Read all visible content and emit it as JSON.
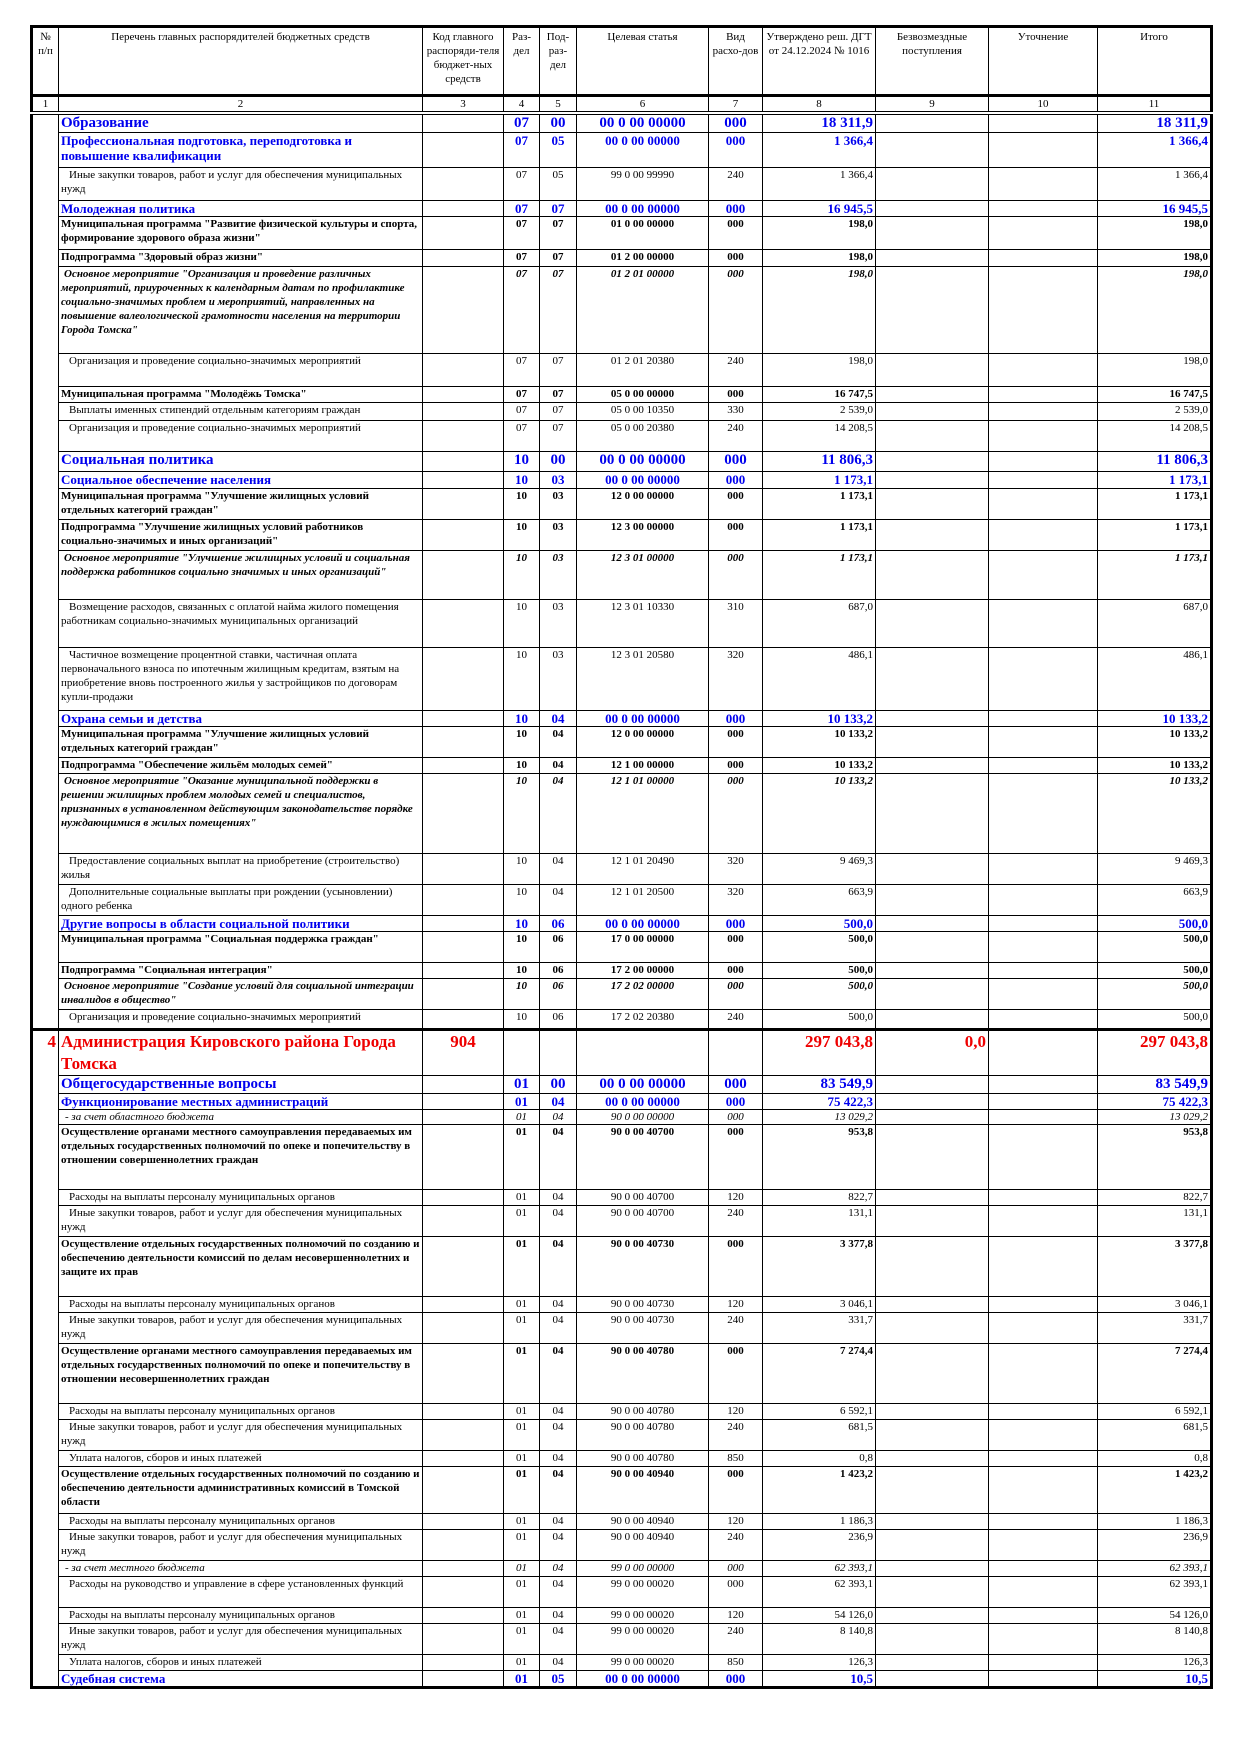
{
  "header": {
    "columns": [
      "№ п/п",
      "Перечень главных распорядителей бюджетных средств",
      "Код главного распоряди-теля бюджет-ных средств",
      "Раз-дел",
      "Под-раз-дел",
      "Целевая статья",
      "Вид расхо-дов",
      "Утверждено реш. ДГТ от 24.12.2024 № 1016",
      "Безвозмездные поступления",
      "Уточнение",
      "Итого"
    ],
    "numbers": [
      "1",
      "2",
      "3",
      "4",
      "5",
      "6",
      "7",
      "8",
      "9",
      "10",
      "11"
    ]
  },
  "rows": [
    {
      "num": "",
      "name": "Образование",
      "code": "",
      "rz": "07",
      "prz": "00",
      "cs": "00 0 00 00000",
      "vr": "000",
      "approved": "18 311,9",
      "gratis": "",
      "clarif": "",
      "total": "18 311,9"
    },
    {
      "num": "",
      "name": "Профессиональная подготовка, переподготовка и повышение квалификации",
      "code": "",
      "rz": "07",
      "prz": "05",
      "cs": "00 0 00 00000",
      "vr": "000",
      "approved": "1 366,4",
      "gratis": "",
      "clarif": "",
      "total": "1 366,4"
    },
    {
      "num": "",
      "name": "Иные закупки товаров, работ и услуг для обеспечения муниципальных нужд",
      "code": "",
      "rz": "07",
      "prz": "05",
      "cs": "99 0 00 99990",
      "vr": "240",
      "approved": "1 366,4",
      "gratis": "",
      "clarif": "",
      "total": "1 366,4"
    },
    {
      "num": "",
      "name": "Молодежная политика",
      "code": "",
      "rz": "07",
      "prz": "07",
      "cs": "00 0 00 00000",
      "vr": "000",
      "approved": "16 945,5",
      "gratis": "",
      "clarif": "",
      "total": "16 945,5"
    },
    {
      "num": "",
      "name": "Муниципальная программа \"Развитие физической культуры и спорта, формирование здорового образа жизни\"",
      "code": "",
      "rz": "07",
      "prz": "07",
      "cs": "01 0 00 00000",
      "vr": "000",
      "approved": "198,0",
      "gratis": "",
      "clarif": "",
      "total": "198,0"
    },
    {
      "num": "",
      "name": "Подпрограмма \"Здоровый образ жизни\"",
      "code": "",
      "rz": "07",
      "prz": "07",
      "cs": "01 2 00 00000",
      "vr": "000",
      "approved": "198,0",
      "gratis": "",
      "clarif": "",
      "total": "198,0"
    },
    {
      "num": "",
      "name": "Основное мероприятие \"Организация и проведение различных мероприятий, приуроченных к календарным датам по профилактике социально-значимых проблем и мероприятий, направленных на повышение валеологической грамотности населения на территории Города Томска\"",
      "code": "",
      "rz": "07",
      "prz": "07",
      "cs": "01 2 01 00000",
      "vr": "000",
      "approved": "198,0",
      "gratis": "",
      "clarif": "",
      "total": "198,0"
    },
    {
      "num": "",
      "name": "Организация и проведение социально-значимых мероприятий",
      "code": "",
      "rz": "07",
      "prz": "07",
      "cs": "01 2 01 20380",
      "vr": "240",
      "approved": "198,0",
      "gratis": "",
      "clarif": "",
      "total": "198,0"
    },
    {
      "num": "",
      "name": "Муниципальная программа \"Молодёжь Томска\"",
      "code": "",
      "rz": "07",
      "prz": "07",
      "cs": "05 0 00 00000",
      "vr": "000",
      "approved": "16 747,5",
      "gratis": "",
      "clarif": "",
      "total": "16 747,5"
    },
    {
      "num": "",
      "name": "Выплаты именных стипендий отдельным категориям граждан",
      "code": "",
      "rz": "07",
      "prz": "07",
      "cs": "05 0 00 10350",
      "vr": "330",
      "approved": "2 539,0",
      "gratis": "",
      "clarif": "",
      "total": "2 539,0"
    },
    {
      "num": "",
      "name": "Организация и проведение социально-значимых мероприятий",
      "code": "",
      "rz": "07",
      "prz": "07",
      "cs": "05 0 00 20380",
      "vr": "240",
      "approved": "14 208,5",
      "gratis": "",
      "clarif": "",
      "total": "14 208,5"
    },
    {
      "num": "",
      "name": "Социальная политика",
      "code": "",
      "rz": "10",
      "prz": "00",
      "cs": "00 0 00 00000",
      "vr": "000",
      "approved": "11 806,3",
      "gratis": "",
      "clarif": "",
      "total": "11 806,3"
    },
    {
      "num": "",
      "name": "Социальное обеспечение населения",
      "code": "",
      "rz": "10",
      "prz": "03",
      "cs": "00 0 00 00000",
      "vr": "000",
      "approved": "1 173,1",
      "gratis": "",
      "clarif": "",
      "total": "1 173,1"
    },
    {
      "num": "",
      "name": "Муниципальная программа \"Улучшение жилищных условий отдельных категорий граждан\"",
      "code": "",
      "rz": "10",
      "prz": "03",
      "cs": "12 0 00 00000",
      "vr": "000",
      "approved": "1 173,1",
      "gratis": "",
      "clarif": "",
      "total": "1 173,1"
    },
    {
      "num": "",
      "name": "Подпрограмма \"Улучшение жилищных условий работников социально-значимых и иных организаций\"",
      "code": "",
      "rz": "10",
      "prz": "03",
      "cs": "12 3 00 00000",
      "vr": "000",
      "approved": "1 173,1",
      "gratis": "",
      "clarif": "",
      "total": "1 173,1"
    },
    {
      "num": "",
      "name": "Основное мероприятие \"Улучшение жилищных условий и социальная поддержка работников социально значимых и иных организаций\"",
      "code": "",
      "rz": "10",
      "prz": "03",
      "cs": "12 3 01 00000",
      "vr": "000",
      "approved": "1 173,1",
      "gratis": "",
      "clarif": "",
      "total": "1 173,1"
    },
    {
      "num": "",
      "name": "Возмещение расходов, связанных с оплатой найма жилого помещения работникам социально-значимых муниципальных организаций",
      "code": "",
      "rz": "10",
      "prz": "03",
      "cs": "12 3 01 10330",
      "vr": "310",
      "approved": "687,0",
      "gratis": "",
      "clarif": "",
      "total": "687,0"
    },
    {
      "num": "",
      "name": "Частичное возмещение процентной ставки, частичная оплата первоначального взноса по ипотечным жилищным кредитам, взятым на приобретение вновь построенного жилья у застройщиков по договорам купли-продажи",
      "code": "",
      "rz": "10",
      "prz": "03",
      "cs": "12 3 01 20580",
      "vr": "320",
      "approved": "486,1",
      "gratis": "",
      "clarif": "",
      "total": "486,1"
    },
    {
      "num": "",
      "name": "Охрана семьи и детства",
      "code": "",
      "rz": "10",
      "prz": "04",
      "cs": "00 0 00 00000",
      "vr": "000",
      "approved": "10 133,2",
      "gratis": "",
      "clarif": "",
      "total": "10 133,2"
    },
    {
      "num": "",
      "name": "Муниципальная программа \"Улучшение жилищных условий отдельных категорий граждан\"",
      "code": "",
      "rz": "10",
      "prz": "04",
      "cs": "12 0 00 00000",
      "vr": "000",
      "approved": "10 133,2",
      "gratis": "",
      "clarif": "",
      "total": "10 133,2"
    },
    {
      "num": "",
      "name": "Подпрограмма \"Обеспечение жильём молодых семей\"",
      "code": "",
      "rz": "10",
      "prz": "04",
      "cs": "12 1 00 00000",
      "vr": "000",
      "approved": "10 133,2",
      "gratis": "",
      "clarif": "",
      "total": "10 133,2"
    },
    {
      "num": "",
      "name": "Основное мероприятие \"Оказание муниципальной поддержки в решении жилищных проблем молодых семей и специалистов, признанных в установленном действующим законодательстве порядке нуждающимися в жилых помещениях\"",
      "code": "",
      "rz": "10",
      "prz": "04",
      "cs": "12 1 01 00000",
      "vr": "000",
      "approved": "10 133,2",
      "gratis": "",
      "clarif": "",
      "total": "10 133,2"
    },
    {
      "num": "",
      "name": "Предоставление социальных выплат на приобретение (строительство) жилья",
      "code": "",
      "rz": "10",
      "prz": "04",
      "cs": "12 1 01 20490",
      "vr": "320",
      "approved": "9 469,3",
      "gratis": "",
      "clarif": "",
      "total": "9 469,3"
    },
    {
      "num": "",
      "name": "Дополнительные социальные выплаты при рождении (усыновлении) одного ребенка",
      "code": "",
      "rz": "10",
      "prz": "04",
      "cs": "12 1 01 20500",
      "vr": "320",
      "approved": "663,9",
      "gratis": "",
      "clarif": "",
      "total": "663,9"
    },
    {
      "num": "",
      "name": "Другие вопросы в области социальной политики",
      "code": "",
      "rz": "10",
      "prz": "06",
      "cs": "00 0 00 00000",
      "vr": "000",
      "approved": "500,0",
      "gratis": "",
      "clarif": "",
      "total": "500,0"
    },
    {
      "num": "",
      "name": "Муниципальная программа \"Социальная поддержка граждан\"",
      "code": "",
      "rz": "10",
      "prz": "06",
      "cs": "17 0 00 00000",
      "vr": "000",
      "approved": "500,0",
      "gratis": "",
      "clarif": "",
      "total": "500,0"
    },
    {
      "num": "",
      "name": "Подпрограмма \"Социальная интеграция\"",
      "code": "",
      "rz": "10",
      "prz": "06",
      "cs": "17 2 00 00000",
      "vr": "000",
      "approved": "500,0",
      "gratis": "",
      "clarif": "",
      "total": "500,0"
    },
    {
      "num": "",
      "name": "Основное мероприятие \"Создание условий для социальной интеграции инвалидов в общество\"",
      "code": "",
      "rz": "10",
      "prz": "06",
      "cs": "17 2 02 00000",
      "vr": "000",
      "approved": "500,0",
      "gratis": "",
      "clarif": "",
      "total": "500,0"
    },
    {
      "num": "",
      "name": "Организация и проведение социально-значимых мероприятий",
      "code": "",
      "rz": "10",
      "prz": "06",
      "cs": "17 2 02 20380",
      "vr": "240",
      "approved": "500,0",
      "gratis": "",
      "clarif": "",
      "total": "500,0"
    },
    {
      "num": "4",
      "name": "Администрация Кировского района Города Томска",
      "code": "904",
      "rz": "",
      "prz": "",
      "cs": "",
      "vr": "",
      "approved": "297 043,8",
      "gratis": "0,0",
      "clarif": "",
      "total": "297 043,8"
    },
    {
      "num": "",
      "name": "Общегосударственные вопросы",
      "code": "",
      "rz": "01",
      "prz": "00",
      "cs": "00 0 00 00000",
      "vr": "000",
      "approved": "83 549,9",
      "gratis": "",
      "clarif": "",
      "total": "83 549,9"
    },
    {
      "num": "",
      "name": "Функционирование местных администраций",
      "code": "",
      "rz": "01",
      "prz": "04",
      "cs": "00 0 00 00000",
      "vr": "000",
      "approved": "75 422,3",
      "gratis": "",
      "clarif": "",
      "total": "75 422,3"
    },
    {
      "num": "",
      "name": "- за счет областного бюджета",
      "code": "",
      "rz": "01",
      "prz": "04",
      "cs": "90 0 00 00000",
      "vr": "000",
      "approved": "13 029,2",
      "gratis": "",
      "clarif": "",
      "total": "13 029,2"
    },
    {
      "num": "",
      "name": "Осуществление органами местного самоуправления передаваемых им отдельных государственных полномочий по опеке и попечительству в отношении совершеннолетних граждан",
      "code": "",
      "rz": "01",
      "prz": "04",
      "cs": "90 0 00 40700",
      "vr": "000",
      "approved": "953,8",
      "gratis": "",
      "clarif": "",
      "total": "953,8"
    },
    {
      "num": "",
      "name": "Расходы на выплаты персоналу муниципальных органов",
      "code": "",
      "rz": "01",
      "prz": "04",
      "cs": "90 0 00 40700",
      "vr": "120",
      "approved": "822,7",
      "gratis": "",
      "clarif": "",
      "total": "822,7"
    },
    {
      "num": "",
      "name": "Иные закупки товаров, работ и услуг для обеспечения муниципальных нужд",
      "code": "",
      "rz": "01",
      "prz": "04",
      "cs": "90 0 00 40700",
      "vr": "240",
      "approved": "131,1",
      "gratis": "",
      "clarif": "",
      "total": "131,1"
    },
    {
      "num": "",
      "name": "Осуществление отдельных государственных полномочий по созданию и обеспечению деятельности комиссий по делам несовершеннолетних и защите их прав",
      "code": "",
      "rz": "01",
      "prz": "04",
      "cs": "90 0 00 40730",
      "vr": "000",
      "approved": "3 377,8",
      "gratis": "",
      "clarif": "",
      "total": "3 377,8"
    },
    {
      "num": "",
      "name": "Расходы на выплаты персоналу муниципальных органов",
      "code": "",
      "rz": "01",
      "prz": "04",
      "cs": "90 0 00 40730",
      "vr": "120",
      "approved": "3 046,1",
      "gratis": "",
      "clarif": "",
      "total": "3 046,1"
    },
    {
      "num": "",
      "name": "Иные закупки товаров, работ и услуг для обеспечения муниципальных нужд",
      "code": "",
      "rz": "01",
      "prz": "04",
      "cs": "90 0 00 40730",
      "vr": "240",
      "approved": "331,7",
      "gratis": "",
      "clarif": "",
      "total": "331,7"
    },
    {
      "num": "",
      "name": "Осуществление органами местного самоуправления передаваемых им отдельных государственных полномочий по опеке и попечительству в отношении несовершеннолетних граждан",
      "code": "",
      "rz": "01",
      "prz": "04",
      "cs": "90 0 00 40780",
      "vr": "000",
      "approved": "7 274,4",
      "gratis": "",
      "clarif": "",
      "total": "7 274,4"
    },
    {
      "num": "",
      "name": "Расходы на выплаты персоналу муниципальных органов",
      "code": "",
      "rz": "01",
      "prz": "04",
      "cs": "90 0 00 40780",
      "vr": "120",
      "approved": "6 592,1",
      "gratis": "",
      "clarif": "",
      "total": "6 592,1"
    },
    {
      "num": "",
      "name": "Иные закупки товаров, работ и услуг для обеспечения муниципальных нужд",
      "code": "",
      "rz": "01",
      "prz": "04",
      "cs": "90 0 00 40780",
      "vr": "240",
      "approved": "681,5",
      "gratis": "",
      "clarif": "",
      "total": "681,5"
    },
    {
      "num": "",
      "name": "Уплата налогов, сборов и иных платежей",
      "code": "",
      "rz": "01",
      "prz": "04",
      "cs": "90 0 00 40780",
      "vr": "850",
      "approved": "0,8",
      "gratis": "",
      "clarif": "",
      "total": "0,8"
    },
    {
      "num": "",
      "name": "Осуществление отдельных государственных полномочий по созданию и обеспечению деятельности административных комиссий в Томской области",
      "code": "",
      "rz": "01",
      "prz": "04",
      "cs": "90 0 00 40940",
      "vr": "000",
      "approved": "1 423,2",
      "gratis": "",
      "clarif": "",
      "total": "1 423,2"
    },
    {
      "num": "",
      "name": "Расходы на выплаты персоналу муниципальных органов",
      "code": "",
      "rz": "01",
      "prz": "04",
      "cs": "90 0 00 40940",
      "vr": "120",
      "approved": "1 186,3",
      "gratis": "",
      "clarif": "",
      "total": "1 186,3"
    },
    {
      "num": "",
      "name": "Иные закупки товаров, работ и услуг для обеспечения муниципальных нужд",
      "code": "",
      "rz": "01",
      "prz": "04",
      "cs": "90 0 00 40940",
      "vr": "240",
      "approved": "236,9",
      "gratis": "",
      "clarif": "",
      "total": "236,9"
    },
    {
      "num": "",
      "name": "- за счет местного бюджета",
      "code": "",
      "rz": "01",
      "prz": "04",
      "cs": "99 0 00 00000",
      "vr": "000",
      "approved": "62 393,1",
      "gratis": "",
      "clarif": "",
      "total": "62 393,1"
    },
    {
      "num": "",
      "name": "Расходы на руководство и управление в сфере установленных функций",
      "code": "",
      "rz": "01",
      "prz": "04",
      "cs": "99 0 00 00020",
      "vr": "000",
      "approved": "62 393,1",
      "gratis": "",
      "clarif": "",
      "total": "62 393,1"
    },
    {
      "num": "",
      "name": "Расходы на выплаты персоналу муниципальных органов",
      "code": "",
      "rz": "01",
      "prz": "04",
      "cs": "99 0 00 00020",
      "vr": "120",
      "approved": "54 126,0",
      "gratis": "",
      "clarif": "",
      "total": "54 126,0"
    },
    {
      "num": "",
      "name": "Иные закупки товаров, работ и услуг для обеспечения муниципальных нужд",
      "code": "",
      "rz": "01",
      "prz": "04",
      "cs": "99 0 00 00020",
      "vr": "240",
      "approved": "8 140,8",
      "gratis": "",
      "clarif": "",
      "total": "8 140,8"
    },
    {
      "num": "",
      "name": "Уплата налогов, сборов и иных платежей",
      "code": "",
      "rz": "01",
      "prz": "04",
      "cs": "99 0 00 00020",
      "vr": "850",
      "approved": "126,3",
      "gratis": "",
      "clarif": "",
      "total": "126,3"
    },
    {
      "num": "",
      "name": "Судебная система",
      "code": "",
      "rz": "01",
      "prz": "05",
      "cs": "00 0 00 00000",
      "vr": "000",
      "approved": "10,5",
      "gratis": "",
      "clarif": "",
      "total": "10,5"
    }
  ],
  "colors": {
    "section": "#0000ee",
    "agency": "#ee0000",
    "text": "#000000"
  }
}
